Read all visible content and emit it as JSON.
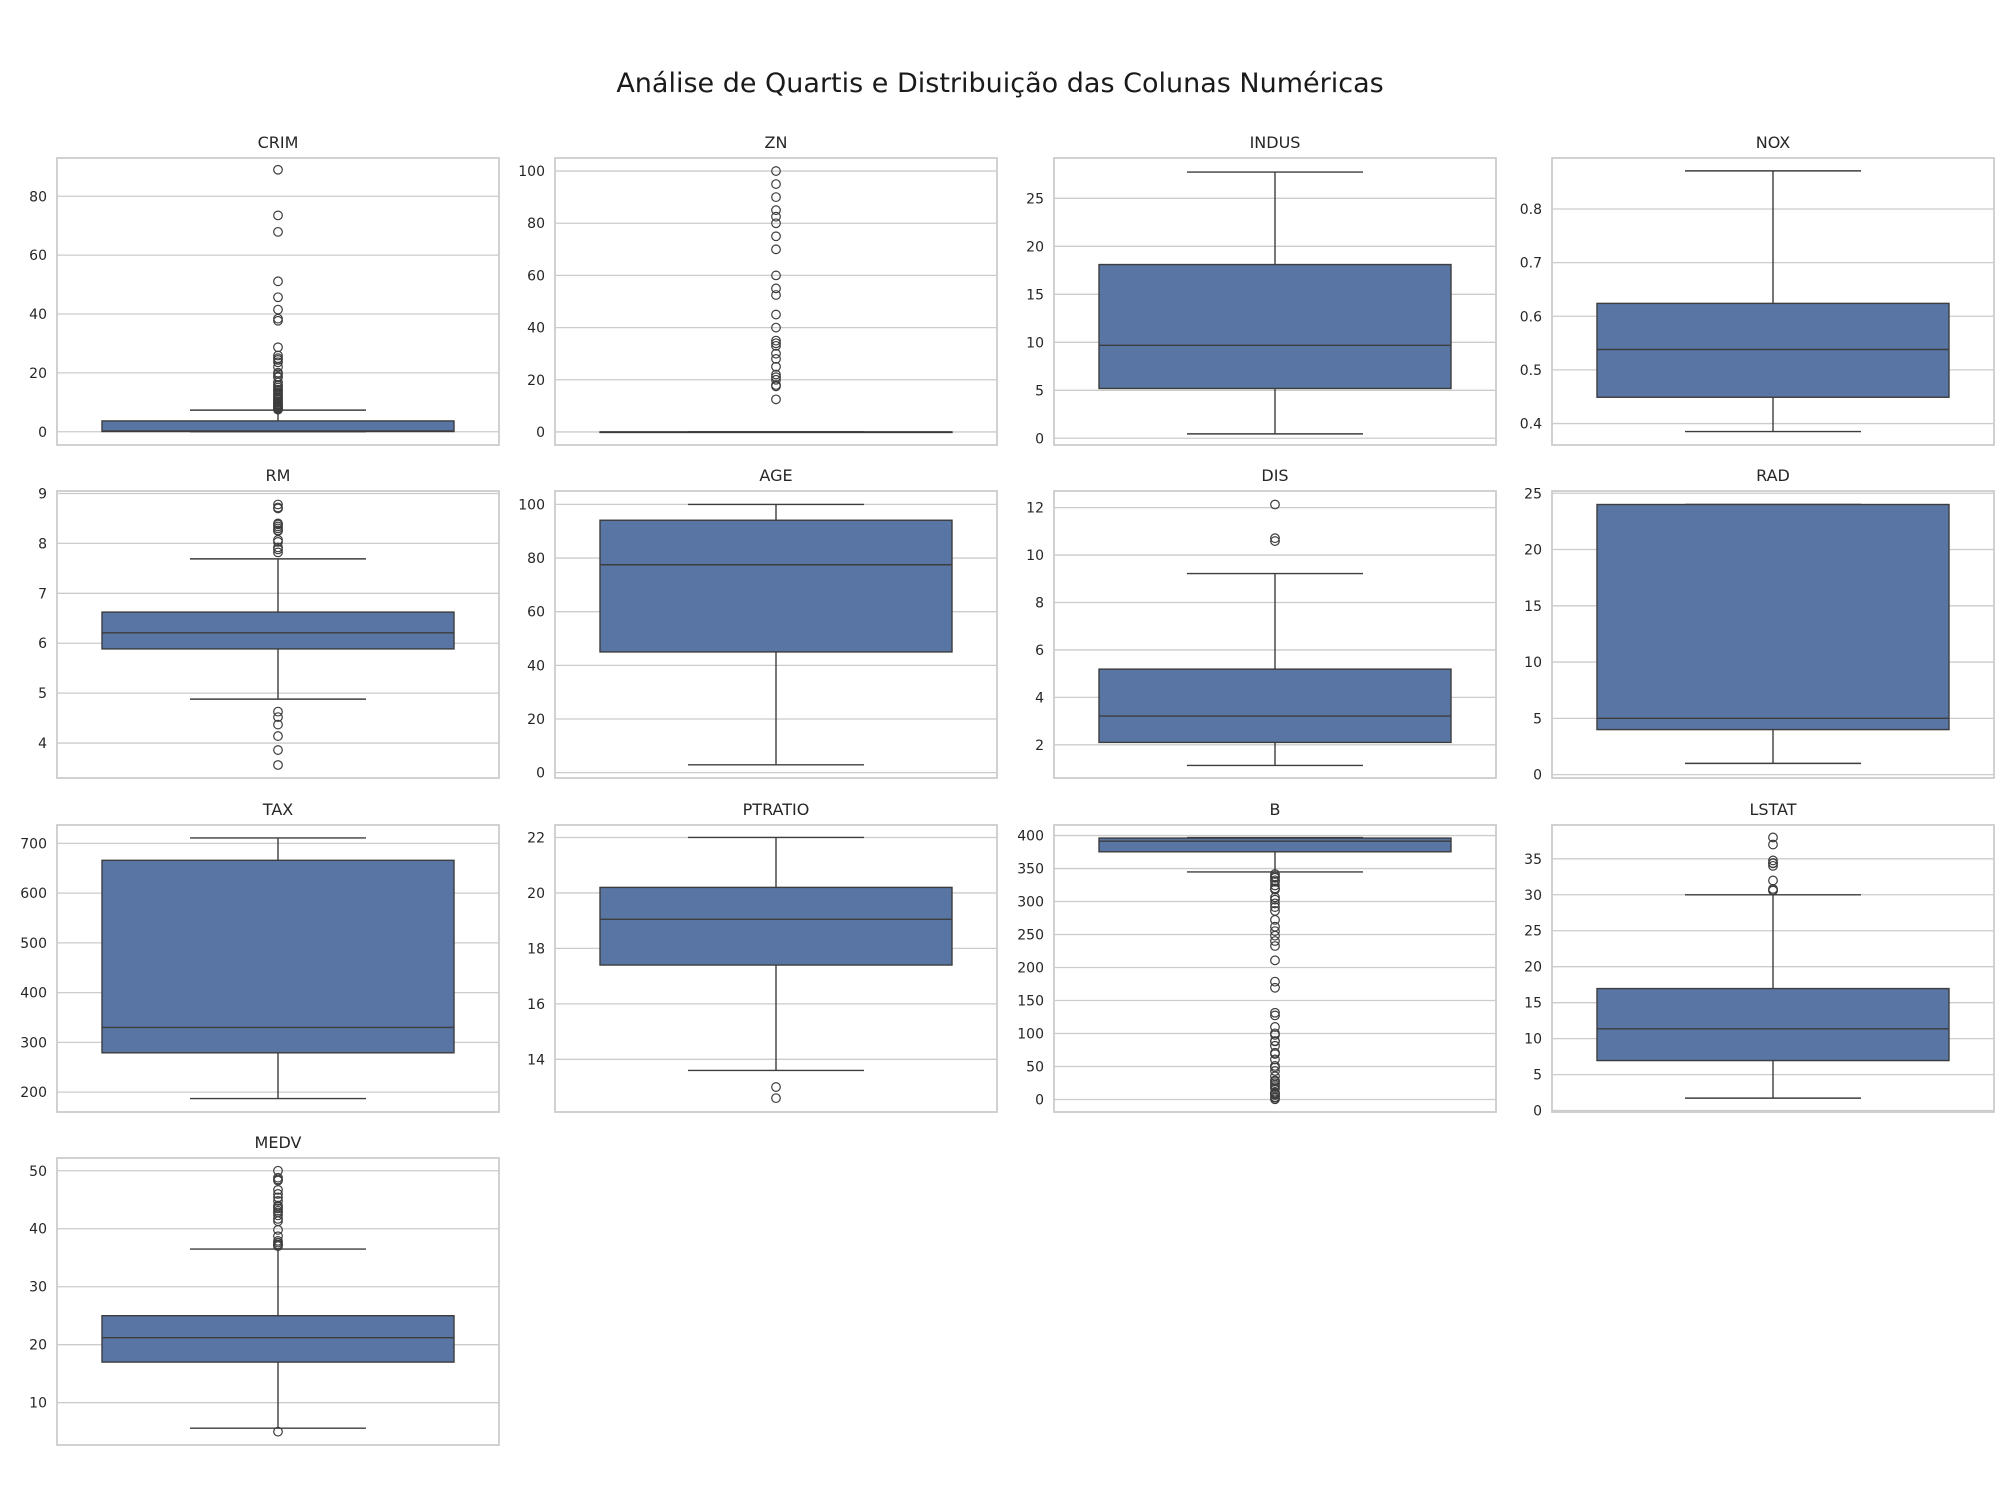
{
  "chart_data": {
    "type": "box",
    "title": "Análise de Quartis e Distribuição das Colunas Numéricas",
    "style": {
      "box_fill": "#5875a4",
      "line_color": "#3d3d3d",
      "grid_color": "#cccccc",
      "frame_color": "#cccccc",
      "background": "#ffffff"
    },
    "panels": [
      {
        "name": "CRIM",
        "ylim": [
          -4.5,
          93
        ],
        "ticks": [
          0,
          20,
          40,
          60,
          80
        ],
        "q1": 0.08,
        "median": 0.26,
        "q3": 3.68,
        "whisker_low": 0.006,
        "whisker_high": 7.35,
        "outliers": [
          7.5,
          7.8,
          8.0,
          8.3,
          8.6,
          8.9,
          9.2,
          9.5,
          9.9,
          10.2,
          10.8,
          11.1,
          11.6,
          12.0,
          12.5,
          13.0,
          13.5,
          14.0,
          14.3,
          15.0,
          15.6,
          15.9,
          16.8,
          18.5,
          18.8,
          19.6,
          20.1,
          22.0,
          23.6,
          24.4,
          25.0,
          25.9,
          28.7,
          37.7,
          38.4,
          41.5,
          45.7,
          51.1,
          67.9,
          73.5,
          89.0
        ]
      },
      {
        "name": "ZN",
        "ylim": [
          -5,
          105
        ],
        "ticks": [
          0,
          20,
          40,
          60,
          80,
          100
        ],
        "q1": 0,
        "median": 0,
        "q3": 0,
        "whisker_low": 0,
        "whisker_high": 0,
        "outliers": [
          12.5,
          17.5,
          18,
          20,
          21,
          22,
          25,
          28,
          30,
          33,
          34,
          35,
          40,
          45,
          52.5,
          55,
          60,
          70,
          75,
          80,
          82.5,
          85,
          90,
          95,
          100
        ]
      },
      {
        "name": "INDUS",
        "ylim": [
          -0.7,
          29.2
        ],
        "ticks": [
          0,
          5,
          10,
          15,
          20,
          25
        ],
        "q1": 5.19,
        "median": 9.69,
        "q3": 18.1,
        "whisker_low": 0.46,
        "whisker_high": 27.74,
        "outliers": []
      },
      {
        "name": "NOX",
        "ylim": [
          0.36,
          0.895
        ],
        "ticks": [
          0.4,
          0.5,
          0.6,
          0.7,
          0.8
        ],
        "q1": 0.449,
        "median": 0.538,
        "q3": 0.624,
        "whisker_low": 0.385,
        "whisker_high": 0.871,
        "outliers": []
      },
      {
        "name": "RM",
        "ylim": [
          3.3,
          9.05
        ],
        "ticks": [
          4,
          5,
          6,
          7,
          8,
          9
        ],
        "q1": 5.886,
        "median": 6.209,
        "q3": 6.624,
        "whisker_low": 4.88,
        "whisker_high": 7.69,
        "outliers": [
          3.56,
          3.86,
          4.14,
          4.37,
          4.52,
          4.63,
          7.82,
          7.88,
          7.92,
          8.03,
          8.07,
          8.25,
          8.26,
          8.3,
          8.34,
          8.38,
          8.4,
          8.7,
          8.72,
          8.78
        ]
      },
      {
        "name": "AGE",
        "ylim": [
          -2,
          105
        ],
        "ticks": [
          0,
          20,
          40,
          60,
          80,
          100
        ],
        "q1": 45.0,
        "median": 77.5,
        "q3": 94.1,
        "whisker_low": 2.9,
        "whisker_high": 100,
        "outliers": []
      },
      {
        "name": "DIS",
        "ylim": [
          0.6,
          12.7
        ],
        "ticks": [
          2,
          4,
          6,
          8,
          10,
          12
        ],
        "q1": 2.1,
        "median": 3.21,
        "q3": 5.19,
        "whisker_low": 1.13,
        "whisker_high": 9.22,
        "outliers": [
          10.59,
          10.71,
          12.13
        ]
      },
      {
        "name": "RAD",
        "ylim": [
          -0.3,
          25.2
        ],
        "ticks": [
          0,
          5,
          10,
          15,
          20,
          25
        ],
        "q1": 4,
        "median": 5,
        "q3": 24,
        "whisker_low": 1,
        "whisker_high": 24,
        "outliers": []
      },
      {
        "name": "TAX",
        "ylim": [
          160,
          737
        ],
        "ticks": [
          200,
          300,
          400,
          500,
          600,
          700
        ],
        "q1": 279,
        "median": 330,
        "q3": 666,
        "whisker_low": 187,
        "whisker_high": 711,
        "outliers": []
      },
      {
        "name": "PTRATIO",
        "ylim": [
          12.1,
          22.45
        ],
        "ticks": [
          14,
          16,
          18,
          20,
          22
        ],
        "q1": 17.4,
        "median": 19.05,
        "q3": 20.2,
        "whisker_low": 13.6,
        "whisker_high": 22.0,
        "outliers": [
          12.6,
          13.0
        ]
      },
      {
        "name": "B",
        "ylim": [
          -19,
          416
        ],
        "ticks": [
          0,
          50,
          100,
          150,
          200,
          250,
          300,
          350,
          400
        ],
        "q1": 375.4,
        "median": 391.4,
        "q3": 396.2,
        "whisker_low": 344.9,
        "whisker_high": 396.9,
        "outliers": [
          0.3,
          2.6,
          3.5,
          6.7,
          7.7,
          9.3,
          10.5,
          16.5,
          18.8,
          21.6,
          24.7,
          27.5,
          28.8,
          35.1,
          43.1,
          48.5,
          50.9,
          60.7,
          68.9,
          70.8,
          81.3,
          88.0,
          88.6,
          97.9,
          100.2,
          109.9,
          127.4,
          131.4,
          169.3,
          178.6,
          210.9,
          232.6,
          240.2,
          248.3,
          255.2,
          261.9,
          272.2,
          285.8,
          291.6,
          297.1,
          302.8,
          306.4,
          318.0,
          319.9,
          324.4,
          330.0,
          332.1,
          336.0,
          338.1,
          341.7
        ]
      },
      {
        "name": "LSTAT",
        "ylim": [
          -0.2,
          39.7
        ],
        "ticks": [
          0,
          5,
          10,
          15,
          20,
          25,
          30,
          35
        ],
        "q1": 6.95,
        "median": 11.36,
        "q3": 16.96,
        "whisker_low": 1.73,
        "whisker_high": 30.0,
        "outliers": [
          30.59,
          30.62,
          30.81,
          31.99,
          34.02,
          34.37,
          34.41,
          34.77,
          36.98,
          37.97
        ]
      },
      {
        "name": "MEDV",
        "ylim": [
          2.7,
          52.2
        ],
        "ticks": [
          10,
          20,
          30,
          40,
          50
        ],
        "q1": 17.0,
        "median": 21.2,
        "q3": 25.0,
        "whisker_low": 5.6,
        "whisker_high": 36.5,
        "outliers": [
          5.0,
          37.0,
          37.2,
          37.3,
          37.6,
          37.9,
          38.7,
          39.8,
          41.3,
          41.7,
          42.3,
          42.8,
          43.1,
          43.5,
          43.8,
          44.0,
          44.8,
          45.4,
          46.0,
          46.7,
          48.3,
          48.5,
          48.8,
          50.0
        ]
      }
    ]
  }
}
